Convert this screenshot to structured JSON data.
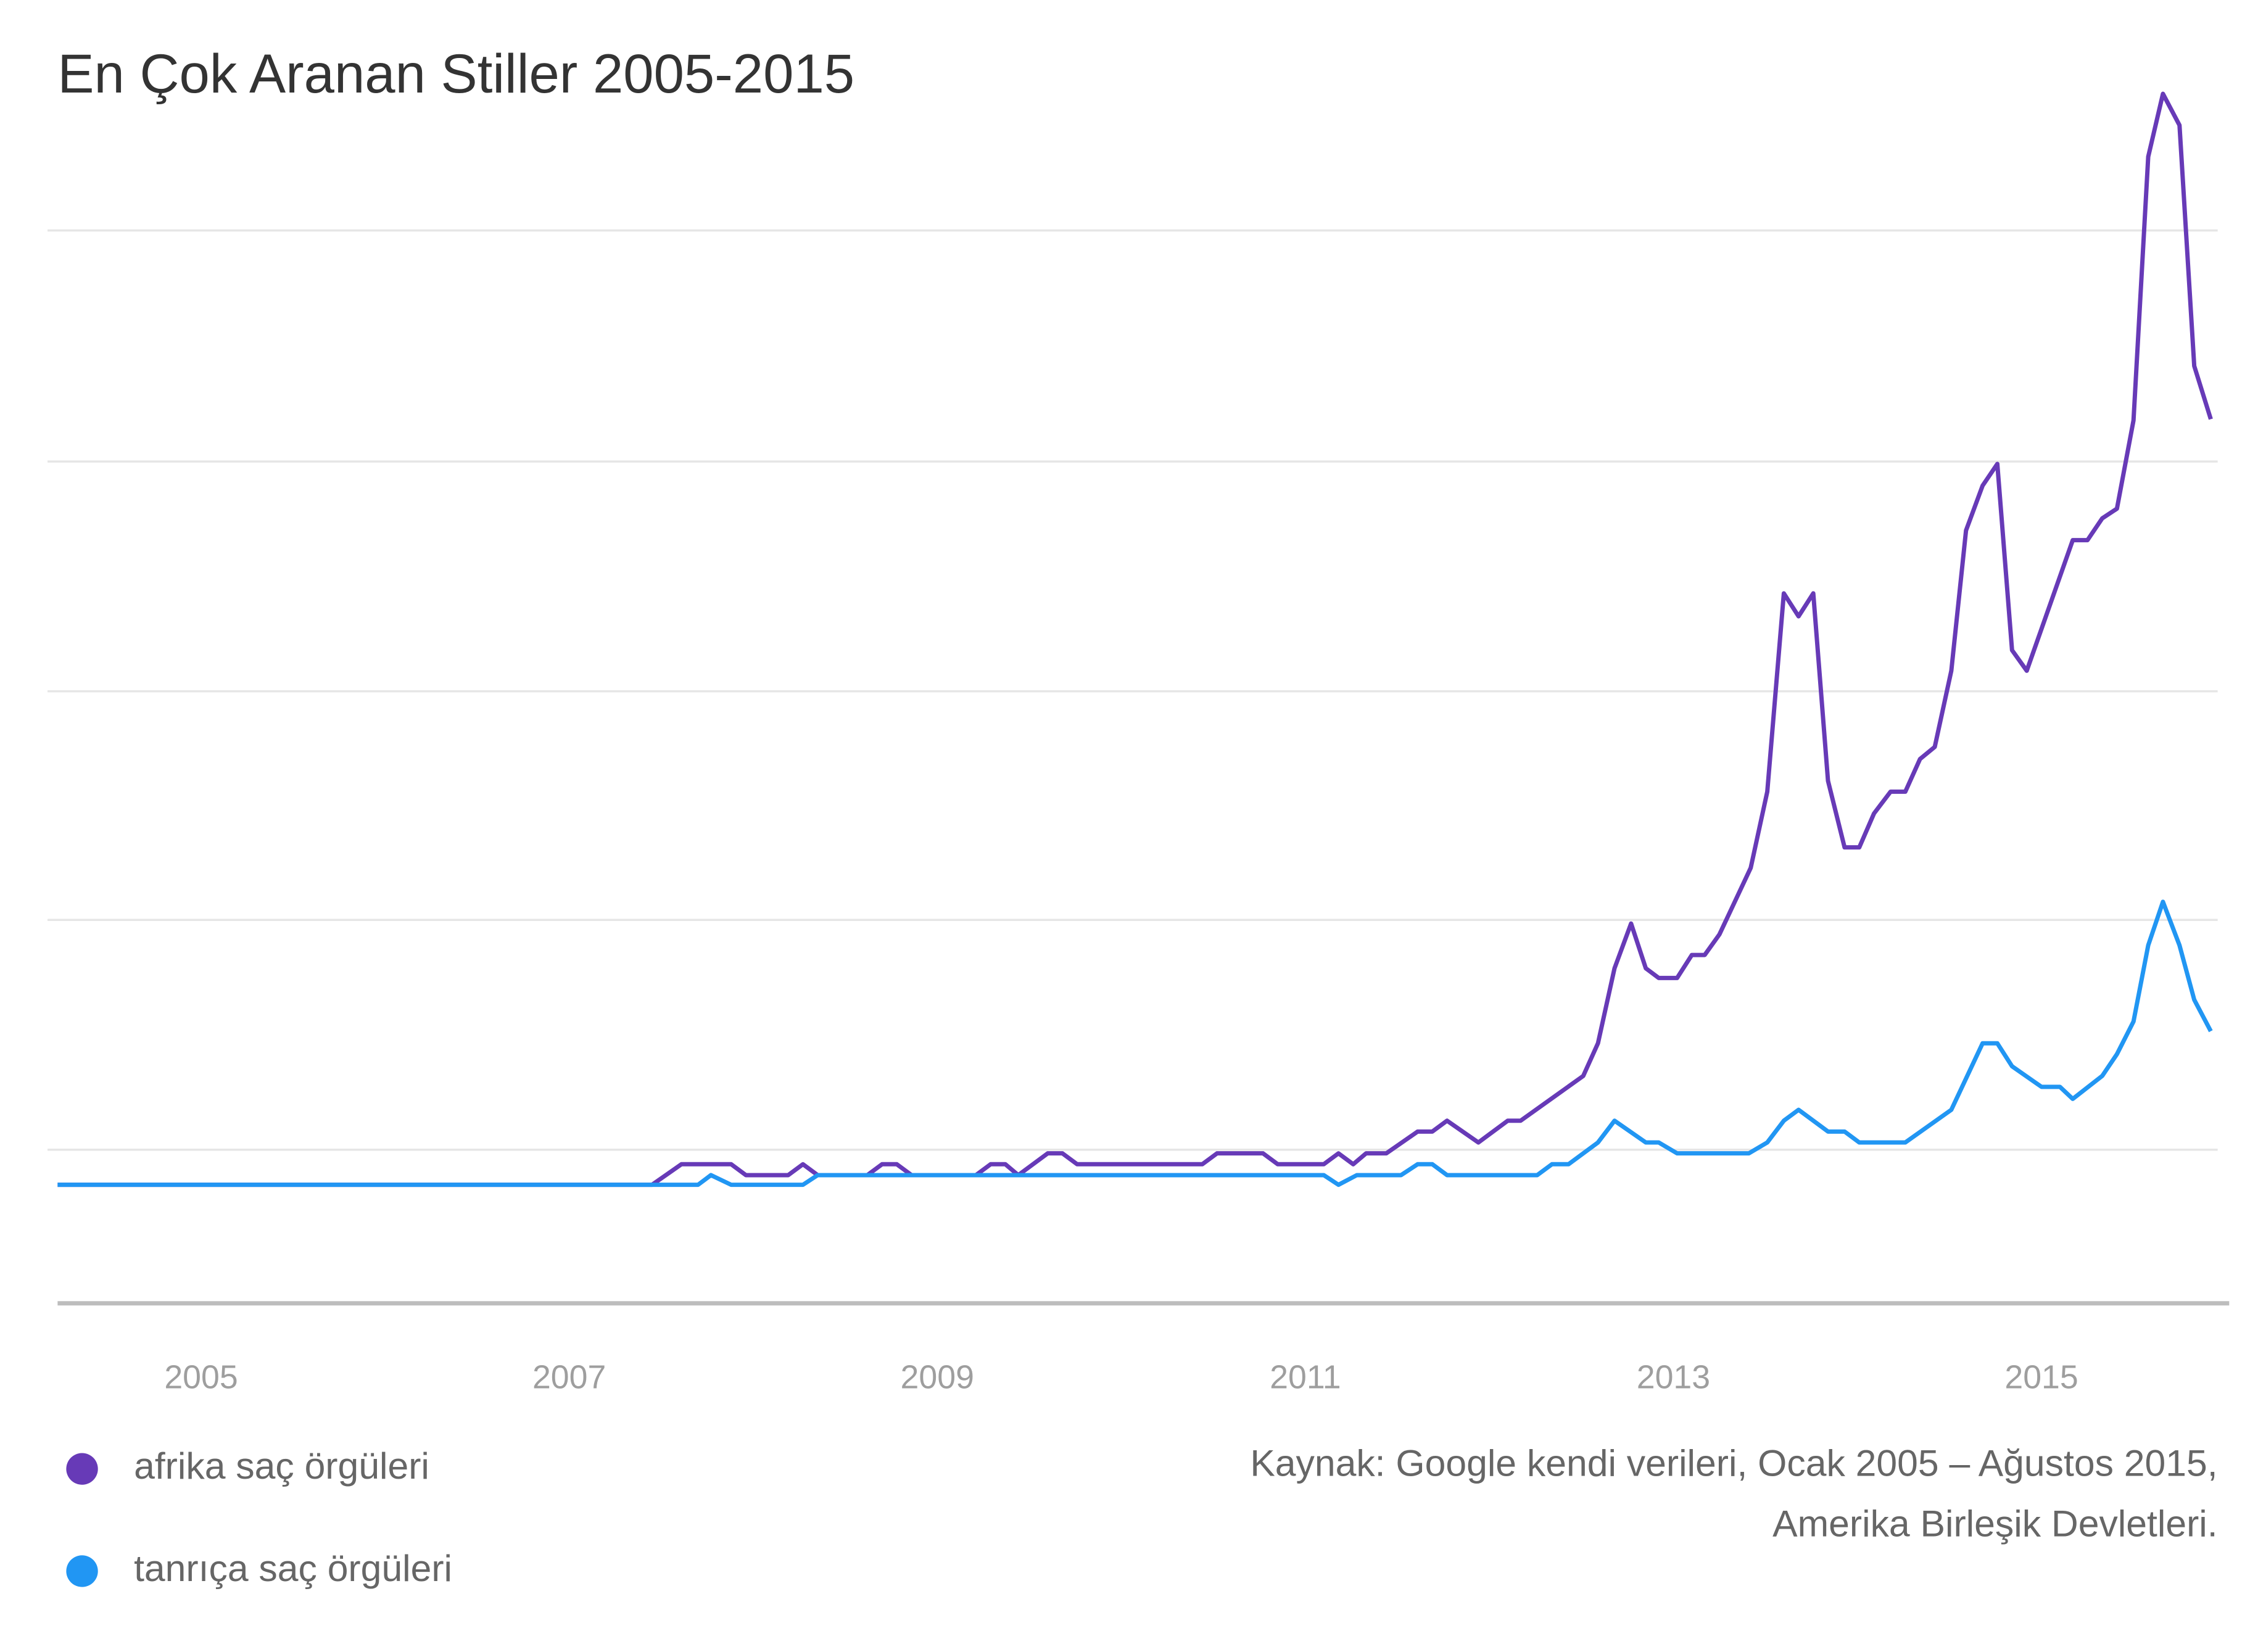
{
  "chart_data": {
    "type": "line",
    "title": "En Çok Aranan Stiller 2005-2015",
    "source": [
      "Kaynak: Google kendi verileri, Ocak 2005 – Ağustos 2015,",
      "Amerika Birleşik Devletleri."
    ],
    "xlim": [
      2004.22,
      2016.02
    ],
    "xticks": [
      2005,
      2007,
      2009,
      2011,
      2013,
      2015
    ],
    "ylim": [
      0,
      100
    ],
    "yticks": [
      12.7,
      31.7,
      50.6,
      69.6,
      88.7
    ],
    "grid": true,
    "series": [
      {
        "name": "afrika saç örgüleri",
        "color": "#673ab7",
        "x": [
          2004.22,
          2007.45,
          2007.61,
          2007.88,
          2007.96,
          2008.19,
          2008.27,
          2008.35,
          2008.62,
          2008.7,
          2008.78,
          2008.86,
          2009.21,
          2009.29,
          2009.37,
          2009.44,
          2009.6,
          2009.68,
          2009.76,
          2010.44,
          2010.52,
          2010.77,
          2010.85,
          2011.1,
          2011.18,
          2011.26,
          2011.33,
          2011.44,
          2011.61,
          2011.69,
          2011.77,
          2011.94,
          2012.1,
          2012.17,
          2012.51,
          2012.59,
          2012.68,
          2012.77,
          2012.85,
          2012.92,
          2013.02,
          2013.1,
          2013.17,
          2013.25,
          2013.42,
          2013.51,
          2013.6,
          2013.68,
          2013.76,
          2013.84,
          2013.93,
          2014.01,
          2014.09,
          2014.18,
          2014.26,
          2014.34,
          2014.42,
          2014.51,
          2014.59,
          2014.68,
          2014.76,
          2014.84,
          2014.92,
          2015.17,
          2015.25,
          2015.33,
          2015.41,
          2015.5,
          2015.58,
          2015.66,
          2015.75,
          2015.83,
          2015.92
        ],
        "values": [
          9.8,
          9.8,
          11.5,
          11.5,
          10.6,
          10.6,
          11.5,
          10.6,
          10.6,
          11.5,
          11.5,
          10.6,
          10.6,
          11.5,
          11.5,
          10.6,
          12.4,
          12.4,
          11.5,
          11.5,
          12.4,
          12.4,
          11.5,
          11.5,
          12.4,
          11.5,
          12.4,
          12.4,
          14.2,
          14.2,
          15.1,
          13.3,
          15.1,
          15.1,
          18.8,
          21.5,
          27.7,
          31.4,
          27.7,
          26.9,
          26.9,
          28.8,
          28.8,
          30.5,
          36.0,
          42.3,
          58.7,
          56.8,
          58.7,
          43.2,
          37.7,
          37.7,
          40.5,
          42.3,
          42.3,
          45.0,
          46.0,
          52.3,
          63.9,
          67.6,
          69.4,
          54.0,
          52.3,
          63.1,
          63.1,
          64.9,
          65.7,
          73.0,
          94.8,
          100,
          97.4,
          77.5,
          73.1
        ]
      },
      {
        "name": "tanrıça saç örgüleri",
        "color": "#2196f3",
        "x": [
          2004.22,
          2007.7,
          2007.77,
          2007.88,
          2008.27,
          2008.35,
          2011.1,
          2011.18,
          2011.28,
          2011.52,
          2011.61,
          2011.69,
          2011.77,
          2012.26,
          2012.34,
          2012.43,
          2012.59,
          2012.68,
          2012.85,
          2012.92,
          2013.02,
          2013.41,
          2013.51,
          2013.6,
          2013.68,
          2013.84,
          2013.93,
          2014.01,
          2014.26,
          2014.51,
          2014.68,
          2014.76,
          2014.84,
          2015.0,
          2015.1,
          2015.17,
          2015.33,
          2015.41,
          2015.5,
          2015.58,
          2015.66,
          2015.75,
          2015.83,
          2015.92
        ],
        "values": [
          9.8,
          9.8,
          10.6,
          9.8,
          9.8,
          10.6,
          10.6,
          9.8,
          10.6,
          10.6,
          11.5,
          11.5,
          10.6,
          10.6,
          11.5,
          11.5,
          13.3,
          15.1,
          13.3,
          13.3,
          12.4,
          12.4,
          13.3,
          15.1,
          16.0,
          14.2,
          14.2,
          13.3,
          13.3,
          16.0,
          21.5,
          21.5,
          19.6,
          17.9,
          17.9,
          16.9,
          18.8,
          20.6,
          23.3,
          29.6,
          33.2,
          29.6,
          25.1,
          22.5
        ]
      }
    ]
  }
}
